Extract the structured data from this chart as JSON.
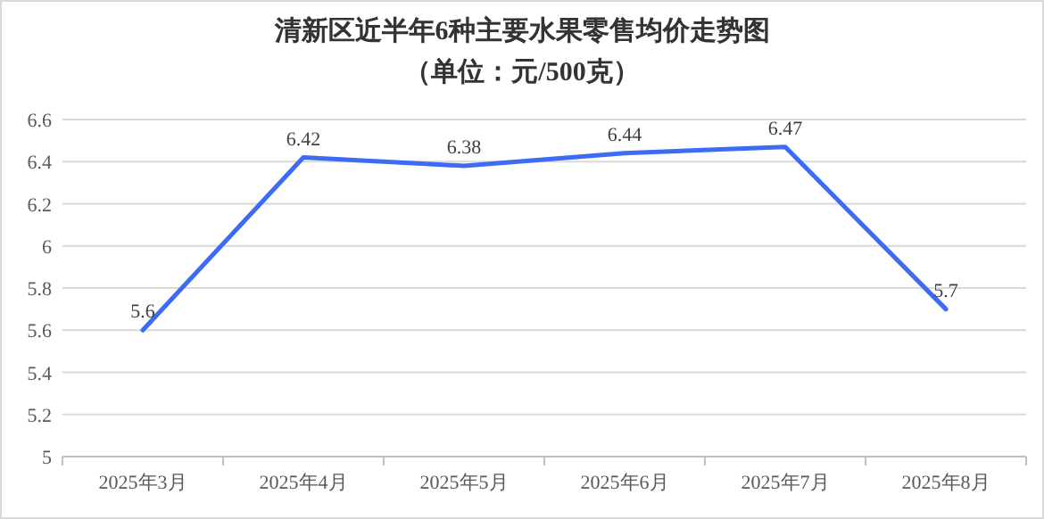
{
  "chart_data": {
    "type": "line",
    "title": "清新区近半年6种主要水果零售均价走势图",
    "subtitle": "（单位：元/500克）",
    "categories": [
      "2025年3月",
      "2025年4月",
      "2025年5月",
      "2025年6月",
      "2025年7月",
      "2025年8月"
    ],
    "series": [
      {
        "color": "#3d6bf5",
        "values": [
          5.6,
          6.42,
          6.38,
          6.44,
          6.47,
          5.7
        ]
      }
    ],
    "ylim": [
      5,
      6.6
    ],
    "yticks": [
      5,
      5.2,
      5.4,
      5.6,
      5.8,
      6,
      6.2,
      6.4,
      6.6
    ],
    "grid": "y",
    "data_labels": true
  }
}
